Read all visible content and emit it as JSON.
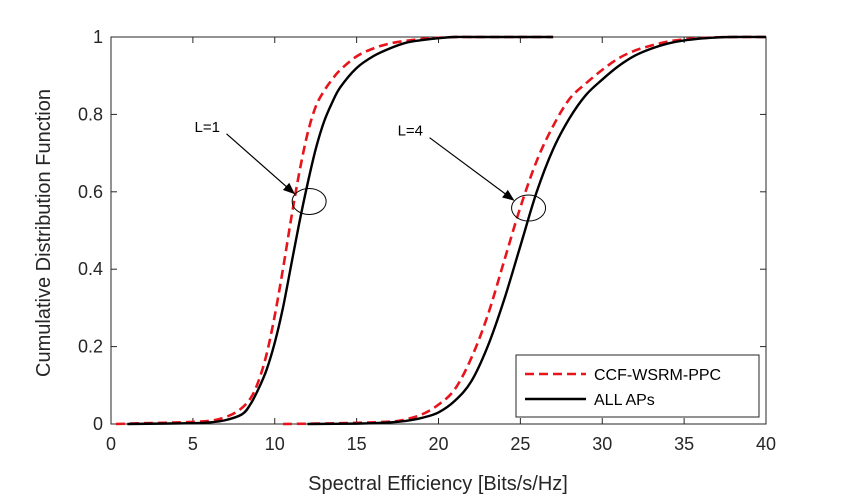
{
  "chart_data": {
    "type": "line",
    "title": "",
    "xlabel": "Spectral Efficiency [Bits/s/Hz]",
    "ylabel": "Cumulative Distribution Function",
    "xlim": [
      0,
      40
    ],
    "ylim": [
      0,
      1
    ],
    "xticks": [
      0,
      5,
      10,
      15,
      20,
      25,
      30,
      35,
      40
    ],
    "yticks": [
      0,
      0.2,
      0.4,
      0.6,
      0.8,
      1
    ],
    "xtick_labels": [
      "0",
      "5",
      "10",
      "15",
      "20",
      "25",
      "30",
      "35",
      "40"
    ],
    "ytick_labels": [
      "0",
      "0.2",
      "0.4",
      "0.6",
      "0.8",
      "1"
    ],
    "grid": false,
    "legend_position": "bottom-right",
    "series": [
      {
        "name": "CCF-WSRM-PPC",
        "group": "L=1",
        "color": "#e8141b",
        "style": "dashed",
        "x": [
          0.3,
          2,
          4,
          6,
          7,
          7.8,
          8.5,
          9,
          9.5,
          10,
          10.5,
          11,
          11.5,
          12,
          12.5,
          13,
          13.5,
          14,
          15,
          16,
          17,
          18,
          19,
          20,
          21,
          22,
          24,
          27
        ],
        "y": [
          0,
          0.002,
          0.004,
          0.008,
          0.018,
          0.035,
          0.065,
          0.11,
          0.18,
          0.28,
          0.4,
          0.53,
          0.65,
          0.75,
          0.82,
          0.86,
          0.89,
          0.915,
          0.95,
          0.97,
          0.983,
          0.99,
          0.995,
          0.998,
          1.0,
          1.0,
          1.0,
          1.0
        ]
      },
      {
        "name": "ALL APs",
        "group": "L=1",
        "color": "#000000",
        "style": "solid",
        "x": [
          1,
          3,
          5,
          6,
          7,
          8,
          8.5,
          9,
          9.5,
          10,
          10.5,
          11,
          11.5,
          12,
          12.5,
          13,
          13.5,
          14,
          15,
          16,
          17,
          18,
          19,
          20,
          21,
          22,
          24,
          27
        ],
        "y": [
          0,
          0.001,
          0.002,
          0.004,
          0.01,
          0.025,
          0.05,
          0.09,
          0.14,
          0.21,
          0.3,
          0.41,
          0.52,
          0.62,
          0.71,
          0.78,
          0.83,
          0.87,
          0.92,
          0.95,
          0.97,
          0.985,
          0.992,
          0.997,
          1.0,
          1.0,
          1.0,
          1.0
        ]
      },
      {
        "name": "CCF-WSRM-PPC",
        "group": "L=4",
        "color": "#e8141b",
        "style": "dashed",
        "x": [
          10.5,
          14,
          17,
          18,
          19,
          20,
          21,
          22,
          23,
          24,
          25,
          26,
          27,
          28,
          29,
          30,
          31,
          32,
          33,
          34,
          35,
          36,
          37,
          38,
          40
        ],
        "y": [
          0,
          0.002,
          0.006,
          0.012,
          0.025,
          0.05,
          0.09,
          0.17,
          0.28,
          0.42,
          0.56,
          0.68,
          0.77,
          0.84,
          0.88,
          0.915,
          0.945,
          0.965,
          0.978,
          0.988,
          0.994,
          0.997,
          0.999,
          1.0,
          1.0
        ]
      },
      {
        "name": "ALL APs",
        "group": "L=4",
        "color": "#000000",
        "style": "solid",
        "x": [
          12,
          15,
          17,
          18,
          19,
          20,
          21,
          22,
          23,
          24,
          25,
          26,
          27,
          28,
          29,
          30,
          31,
          32,
          33,
          34,
          35,
          36,
          37,
          38,
          40
        ],
        "y": [
          0,
          0.001,
          0.004,
          0.008,
          0.016,
          0.03,
          0.06,
          0.11,
          0.2,
          0.32,
          0.46,
          0.6,
          0.71,
          0.79,
          0.85,
          0.89,
          0.925,
          0.952,
          0.97,
          0.983,
          0.991,
          0.996,
          0.999,
          1.0,
          1.0
        ]
      }
    ],
    "annotations": [
      {
        "text": "L=1",
        "text_x": 5.1,
        "text_y": 0.755,
        "ellipse_x": 12.1,
        "ellipse_y": 0.575
      },
      {
        "text": "L=4",
        "text_x": 17.5,
        "text_y": 0.745,
        "ellipse_x": 25.5,
        "ellipse_y": 0.558
      }
    ],
    "legend": [
      {
        "label": "CCF-WSRM-PPC",
        "color": "#e8141b",
        "style": "dashed"
      },
      {
        "label": "ALL APs",
        "color": "#000000",
        "style": "solid"
      }
    ]
  }
}
